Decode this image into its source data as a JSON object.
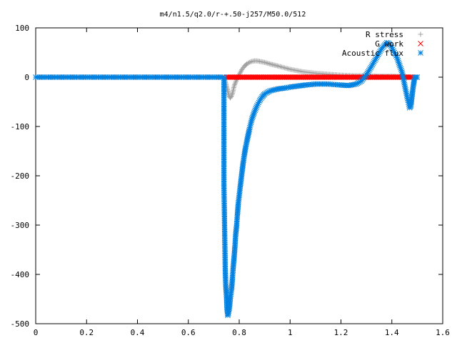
{
  "chart_data": {
    "type": "scatter",
    "title": "m4/n1.5/q2.0/r-+.50-j257/M50.0/512",
    "xlabel": "",
    "ylabel": "",
    "xlim": [
      0,
      1.6
    ],
    "ylim": [
      -500,
      100
    ],
    "xticks": [
      "0",
      "0.2",
      "0.4",
      "0.6",
      "0.8",
      "1",
      "1.2",
      "1.4",
      "1.6"
    ],
    "yticks": [
      "100",
      "0",
      "-100",
      "-200",
      "-300",
      "-400",
      "-500"
    ],
    "grid": false,
    "legend_position": "top-right",
    "series": [
      {
        "name": "R stress",
        "marker": "plus",
        "color": "#a0a0a0",
        "points": [
          [
            0.0,
            0
          ],
          [
            0.74,
            0
          ],
          [
            0.745,
            -8
          ],
          [
            0.75,
            -18
          ],
          [
            0.755,
            -28
          ],
          [
            0.76,
            -38
          ],
          [
            0.765,
            -42
          ],
          [
            0.77,
            -38
          ],
          [
            0.775,
            -30
          ],
          [
            0.78,
            -18
          ],
          [
            0.79,
            -5
          ],
          [
            0.8,
            5
          ],
          [
            0.81,
            15
          ],
          [
            0.82,
            22
          ],
          [
            0.83,
            27
          ],
          [
            0.84,
            30
          ],
          [
            0.85,
            32
          ],
          [
            0.86,
            33
          ],
          [
            0.87,
            33
          ],
          [
            0.88,
            32
          ],
          [
            0.9,
            30
          ],
          [
            0.92,
            27
          ],
          [
            0.95,
            23
          ],
          [
            1.0,
            16
          ],
          [
            1.05,
            11
          ],
          [
            1.1,
            8
          ],
          [
            1.15,
            6
          ],
          [
            1.2,
            4
          ],
          [
            1.25,
            3
          ],
          [
            1.3,
            3
          ],
          [
            1.35,
            2
          ],
          [
            1.4,
            2
          ],
          [
            1.45,
            1
          ],
          [
            1.48,
            0
          ],
          [
            1.5,
            0
          ]
        ]
      },
      {
        "name": "G work",
        "marker": "cross",
        "color": "#ff0000",
        "points": [
          [
            0.75,
            0
          ],
          [
            1.48,
            0
          ]
        ]
      },
      {
        "name": "Acoustic flux",
        "marker": "asterisk",
        "color": "#0080e0",
        "points": [
          [
            0.0,
            0
          ],
          [
            0.74,
            0
          ],
          [
            0.74,
            -215
          ],
          [
            0.745,
            -388
          ],
          [
            0.747,
            -420
          ],
          [
            0.75,
            -443
          ],
          [
            0.752,
            -470
          ],
          [
            0.755,
            -483
          ],
          [
            0.758,
            -478
          ],
          [
            0.762,
            -465
          ],
          [
            0.765,
            -448
          ],
          [
            0.77,
            -430
          ],
          [
            0.773,
            -410
          ],
          [
            0.776,
            -388
          ],
          [
            0.78,
            -365
          ],
          [
            0.783,
            -345
          ],
          [
            0.786,
            -320
          ],
          [
            0.79,
            -300
          ],
          [
            0.793,
            -278
          ],
          [
            0.796,
            -258
          ],
          [
            0.8,
            -240
          ],
          [
            0.804,
            -222
          ],
          [
            0.808,
            -205
          ],
          [
            0.812,
            -188
          ],
          [
            0.816,
            -172
          ],
          [
            0.82,
            -158
          ],
          [
            0.825,
            -143
          ],
          [
            0.83,
            -130
          ],
          [
            0.835,
            -118
          ],
          [
            0.84,
            -106
          ],
          [
            0.845,
            -95
          ],
          [
            0.85,
            -85
          ],
          [
            0.86,
            -70
          ],
          [
            0.87,
            -58
          ],
          [
            0.88,
            -48
          ],
          [
            0.89,
            -40
          ],
          [
            0.9,
            -34
          ],
          [
            0.92,
            -28
          ],
          [
            0.95,
            -24
          ],
          [
            0.98,
            -22
          ],
          [
            1.0,
            -20
          ],
          [
            1.03,
            -18
          ],
          [
            1.06,
            -16
          ],
          [
            1.1,
            -14
          ],
          [
            1.15,
            -14
          ],
          [
            1.2,
            -16
          ],
          [
            1.23,
            -17
          ],
          [
            1.26,
            -14
          ],
          [
            1.28,
            -8
          ],
          [
            1.3,
            5
          ],
          [
            1.32,
            22
          ],
          [
            1.34,
            40
          ],
          [
            1.36,
            58
          ],
          [
            1.38,
            70
          ],
          [
            1.39,
            68
          ],
          [
            1.4,
            60
          ],
          [
            1.42,
            40
          ],
          [
            1.44,
            10
          ],
          [
            1.45,
            -15
          ],
          [
            1.46,
            -40
          ],
          [
            1.47,
            -62
          ],
          [
            1.475,
            -58
          ],
          [
            1.48,
            -35
          ],
          [
            1.485,
            -15
          ],
          [
            1.49,
            0
          ],
          [
            1.5,
            0
          ]
        ]
      }
    ]
  }
}
